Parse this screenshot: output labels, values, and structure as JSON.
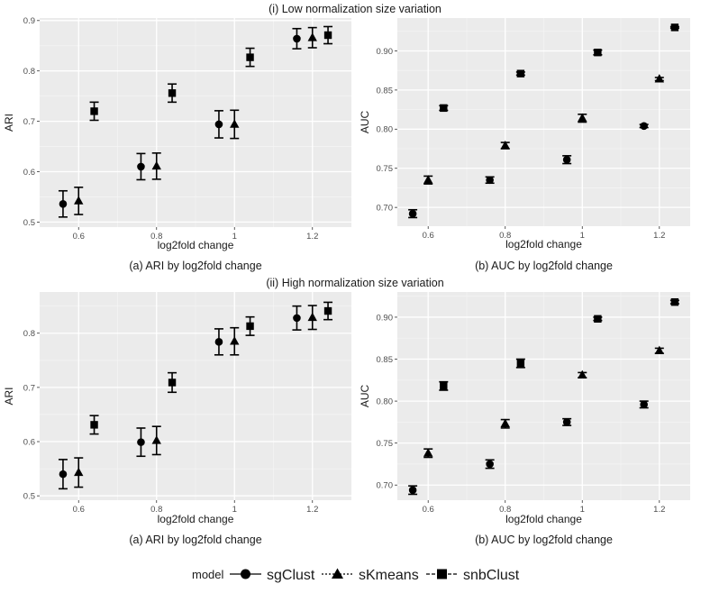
{
  "sections": [
    {
      "title": "(i) Low normalization size variation"
    },
    {
      "title": "(ii) High normalization size variation"
    }
  ],
  "legend": {
    "title": "model",
    "entries": [
      {
        "label": "sgClust",
        "shape": "circle"
      },
      {
        "label": "sKmeans",
        "shape": "triangle"
      },
      {
        "label": "snbClust",
        "shape": "square"
      }
    ]
  },
  "colors": {
    "panel_bg": "#ebebeb",
    "grid_major": "#ffffff",
    "grid_minor": "#f4f4f4",
    "marker": "#000000"
  },
  "chart_data": [
    {
      "type": "scatter",
      "caption": "(a) ARI by log2fold change",
      "xlabel": "log2fold change",
      "ylabel": "ARI",
      "xlim": [
        0.5,
        1.3
      ],
      "ylim": [
        0.49,
        0.905
      ],
      "xticks": [
        0.6,
        0.8,
        1.0,
        1.2
      ],
      "xtick_labels": [
        "0.6",
        "0.8",
        "1",
        "1.2"
      ],
      "yticks": [
        0.5,
        0.6,
        0.7,
        0.8,
        0.9
      ],
      "ytick_labels": [
        "0.5",
        "0.6",
        "0.7",
        "0.8",
        "0.9"
      ],
      "grid": true,
      "series": [
        {
          "name": "sgClust",
          "x": [
            0.56,
            0.76,
            0.96,
            1.16
          ],
          "y": [
            0.536,
            0.61,
            0.694,
            0.864
          ],
          "err": [
            0.026,
            0.026,
            0.027,
            0.02
          ]
        },
        {
          "name": "sKmeans",
          "x": [
            0.6,
            0.8,
            1.0,
            1.2
          ],
          "y": [
            0.542,
            0.611,
            0.694,
            0.866
          ],
          "err": [
            0.027,
            0.026,
            0.028,
            0.02
          ]
        },
        {
          "name": "snbClust",
          "x": [
            0.64,
            0.84,
            1.04,
            1.24
          ],
          "y": [
            0.72,
            0.756,
            0.827,
            0.871
          ],
          "err": [
            0.018,
            0.018,
            0.018,
            0.017
          ]
        }
      ]
    },
    {
      "type": "scatter",
      "caption": "(b) AUC by log2fold change",
      "xlabel": "log2fold change",
      "ylabel": "AUC",
      "xlim": [
        0.52,
        1.28
      ],
      "ylim": [
        0.676,
        0.942
      ],
      "xticks": [
        0.6,
        0.8,
        1.0,
        1.2
      ],
      "xtick_labels": [
        "0.6",
        "0.8",
        "1",
        "1.2"
      ],
      "yticks": [
        0.7,
        0.75,
        0.8,
        0.85,
        0.9
      ],
      "ytick_labels": [
        "0.70",
        "0.75",
        "0.80",
        "0.85",
        "0.90"
      ],
      "grid": true,
      "series": [
        {
          "name": "sgClust",
          "x": [
            0.56,
            0.76,
            0.96,
            1.16
          ],
          "y": [
            0.692,
            0.735,
            0.761,
            0.804
          ],
          "err": [
            0.005,
            0.004,
            0.005,
            0.002
          ]
        },
        {
          "name": "sKmeans",
          "x": [
            0.6,
            0.8,
            1.0,
            1.2
          ],
          "y": [
            0.735,
            0.779,
            0.814,
            0.864
          ],
          "err": [
            0.005,
            0.004,
            0.005,
            0.002
          ]
        },
        {
          "name": "snbClust",
          "x": [
            0.64,
            0.84,
            1.04,
            1.24
          ],
          "y": [
            0.827,
            0.871,
            0.898,
            0.93
          ],
          "err": [
            0.003,
            0.002,
            0.003,
            0.001
          ]
        }
      ]
    },
    {
      "type": "scatter",
      "caption": "(a) ARI by log2fold change",
      "xlabel": "log2fold change",
      "ylabel": "ARI",
      "xlim": [
        0.5,
        1.3
      ],
      "ylim": [
        0.492,
        0.876
      ],
      "xticks": [
        0.6,
        0.8,
        1.0,
        1.2
      ],
      "xtick_labels": [
        "0.6",
        "0.8",
        "1",
        "1.2"
      ],
      "yticks": [
        0.5,
        0.6,
        0.7,
        0.8
      ],
      "ytick_labels": [
        "0.5",
        "0.6",
        "0.7",
        "0.8"
      ],
      "grid": true,
      "series": [
        {
          "name": "sgClust",
          "x": [
            0.56,
            0.76,
            0.96,
            1.16
          ],
          "y": [
            0.54,
            0.599,
            0.784,
            0.828
          ],
          "err": [
            0.027,
            0.026,
            0.024,
            0.022
          ]
        },
        {
          "name": "sKmeans",
          "x": [
            0.6,
            0.8,
            1.0,
            1.2
          ],
          "y": [
            0.543,
            0.602,
            0.785,
            0.829
          ],
          "err": [
            0.027,
            0.026,
            0.025,
            0.022
          ]
        },
        {
          "name": "snbClust",
          "x": [
            0.64,
            0.84,
            1.04,
            1.24
          ],
          "y": [
            0.631,
            0.709,
            0.813,
            0.841
          ],
          "err": [
            0.017,
            0.018,
            0.017,
            0.016
          ]
        }
      ]
    },
    {
      "type": "scatter",
      "caption": "(b) AUC by log2fold change",
      "xlabel": "log2fold change",
      "ylabel": "AUC",
      "xlim": [
        0.52,
        1.28
      ],
      "ylim": [
        0.682,
        0.93
      ],
      "xticks": [
        0.6,
        0.8,
        1.0,
        1.2
      ],
      "xtick_labels": [
        "0.6",
        "0.8",
        "1",
        "1.2"
      ],
      "yticks": [
        0.7,
        0.75,
        0.8,
        0.85,
        0.9
      ],
      "ytick_labels": [
        "0.70",
        "0.75",
        "0.80",
        "0.85",
        "0.90"
      ],
      "grid": true,
      "series": [
        {
          "name": "sgClust",
          "x": [
            0.56,
            0.76,
            0.96,
            1.16
          ],
          "y": [
            0.694,
            0.725,
            0.775,
            0.796
          ],
          "err": [
            0.005,
            0.005,
            0.004,
            0.004
          ]
        },
        {
          "name": "sKmeans",
          "x": [
            0.6,
            0.8,
            1.0,
            1.2
          ],
          "y": [
            0.738,
            0.773,
            0.831,
            0.86
          ],
          "err": [
            0.005,
            0.005,
            0.003,
            0.003
          ]
        },
        {
          "name": "snbClust",
          "x": [
            0.64,
            0.84,
            1.04,
            1.24
          ],
          "y": [
            0.818,
            0.845,
            0.898,
            0.918
          ],
          "err": [
            0.005,
            0.005,
            0.002,
            0.002
          ]
        }
      ]
    }
  ]
}
